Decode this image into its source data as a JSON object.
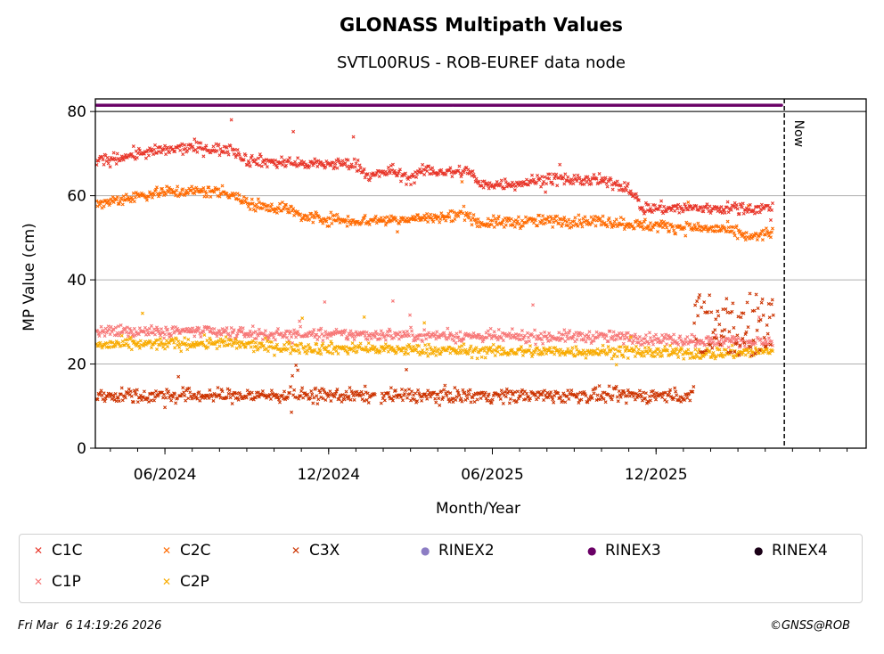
{
  "chart_data": {
    "type": "scatter",
    "title": "GLONASS Multipath Values",
    "subtitle": "SVTL00RUS - ROB-EUREF data node",
    "xlabel": "Month/Year",
    "ylabel": "MP Value (cm)",
    "ylim": [
      0,
      83
    ],
    "xlim_months": [
      -2.55,
      25.7
    ],
    "yticks": [
      0,
      20,
      40,
      60,
      80
    ],
    "xticks": [
      {
        "label": "06/2024",
        "month": 0
      },
      {
        "label": "12/2024",
        "month": 6
      },
      {
        "label": "06/2025",
        "month": 12
      },
      {
        "label": "12/2025",
        "month": 18
      }
    ],
    "grid": "horizontal",
    "now_label": "Now",
    "now_month": 22.7,
    "series": [
      {
        "name": "C1C",
        "color": "#e8362a",
        "marker": "x",
        "start": -2.5,
        "end": 22.3,
        "trend": [
          [
            -2.5,
            68
          ],
          [
            -1,
            70
          ],
          [
            1,
            71.5
          ],
          [
            2,
            71
          ],
          [
            2.5,
            71
          ],
          [
            3,
            68.5
          ],
          [
            5,
            67.5
          ],
          [
            7,
            67.5
          ],
          [
            7.5,
            64.5
          ],
          [
            8.3,
            66
          ],
          [
            9,
            64
          ],
          [
            9.5,
            66
          ],
          [
            10.5,
            65.5
          ],
          [
            11.2,
            66
          ],
          [
            11.5,
            62.5
          ],
          [
            13,
            63
          ],
          [
            14,
            64
          ],
          [
            16,
            63.5
          ],
          [
            17,
            62
          ],
          [
            17.5,
            57
          ],
          [
            19.5,
            57
          ],
          [
            21,
            57
          ],
          [
            22.3,
            57
          ]
        ]
      },
      {
        "name": "C2C",
        "color": "#ff6a00",
        "marker": "x",
        "start": -2.5,
        "end": 22.3,
        "trend": [
          [
            -2.5,
            58
          ],
          [
            -1,
            60
          ],
          [
            0,
            61
          ],
          [
            2,
            61
          ],
          [
            2.5,
            60.5
          ],
          [
            3,
            58
          ],
          [
            4.5,
            57
          ],
          [
            5,
            55
          ],
          [
            7,
            54
          ],
          [
            9,
            54.5
          ],
          [
            10.5,
            55
          ],
          [
            11,
            56
          ],
          [
            11.5,
            53.5
          ],
          [
            14,
            54
          ],
          [
            16,
            54
          ],
          [
            17.5,
            53
          ],
          [
            19,
            52.5
          ],
          [
            20.5,
            52
          ],
          [
            21.5,
            50
          ],
          [
            22.3,
            51.5
          ]
        ]
      },
      {
        "name": "C3X",
        "color": "#cc3300",
        "marker": "x",
        "start": -2.5,
        "end": 19.4,
        "trend": [
          [
            -2.5,
            12.5
          ],
          [
            19.4,
            12.5
          ]
        ],
        "gaps": [
          [
            7.7,
            7.9
          ]
        ]
      },
      {
        "name": "C1P",
        "color": "#f77777",
        "marker": "x",
        "start": -2.5,
        "end": 22.3,
        "trend": [
          [
            -2.5,
            27.5
          ],
          [
            0,
            28
          ],
          [
            4,
            27
          ],
          [
            8,
            27
          ],
          [
            12,
            26.5
          ],
          [
            16,
            26.5
          ],
          [
            20,
            25.5
          ],
          [
            22.3,
            25
          ]
        ]
      },
      {
        "name": "C2P",
        "color": "#f8ab00",
        "marker": "x",
        "start": -2.5,
        "end": 22.3,
        "trend": [
          [
            -2.5,
            24.5
          ],
          [
            2,
            25
          ],
          [
            4,
            24
          ],
          [
            8,
            23.5
          ],
          [
            12,
            23
          ],
          [
            16,
            23
          ],
          [
            20,
            22.5
          ],
          [
            22.3,
            23
          ]
        ]
      },
      {
        "name": "RINEX2",
        "color": "#8c7dc4",
        "marker": "o"
      },
      {
        "name": "RINEX3",
        "color": "#6a0066",
        "marker": "o",
        "start": -2.5,
        "end": 22.6,
        "level": 81.5
      },
      {
        "name": "RINEX4",
        "color": "#1a0016",
        "marker": "o"
      }
    ],
    "c3x_late_cluster": {
      "start": 19.4,
      "end": 22.3,
      "low": 22,
      "high": 37
    }
  },
  "legend_position": "bottom",
  "footer": {
    "timestamp": "Fri Mar  6 14:19:26 2026",
    "copyright": "©GNSS@ROB"
  }
}
